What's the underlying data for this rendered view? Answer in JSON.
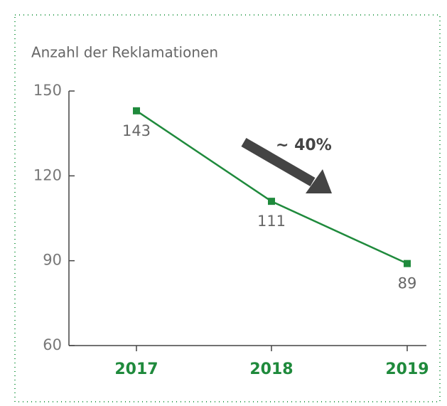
{
  "chart_data": {
    "type": "line",
    "title": "Anzahl der Reklamationen",
    "categories": [
      "2017",
      "2018",
      "2019"
    ],
    "values": [
      143,
      111,
      89
    ],
    "color": "#1f8a3c",
    "ylim": [
      60,
      150
    ],
    "yticks": [
      60,
      90,
      120,
      150
    ],
    "annotation": "~ 40%"
  }
}
